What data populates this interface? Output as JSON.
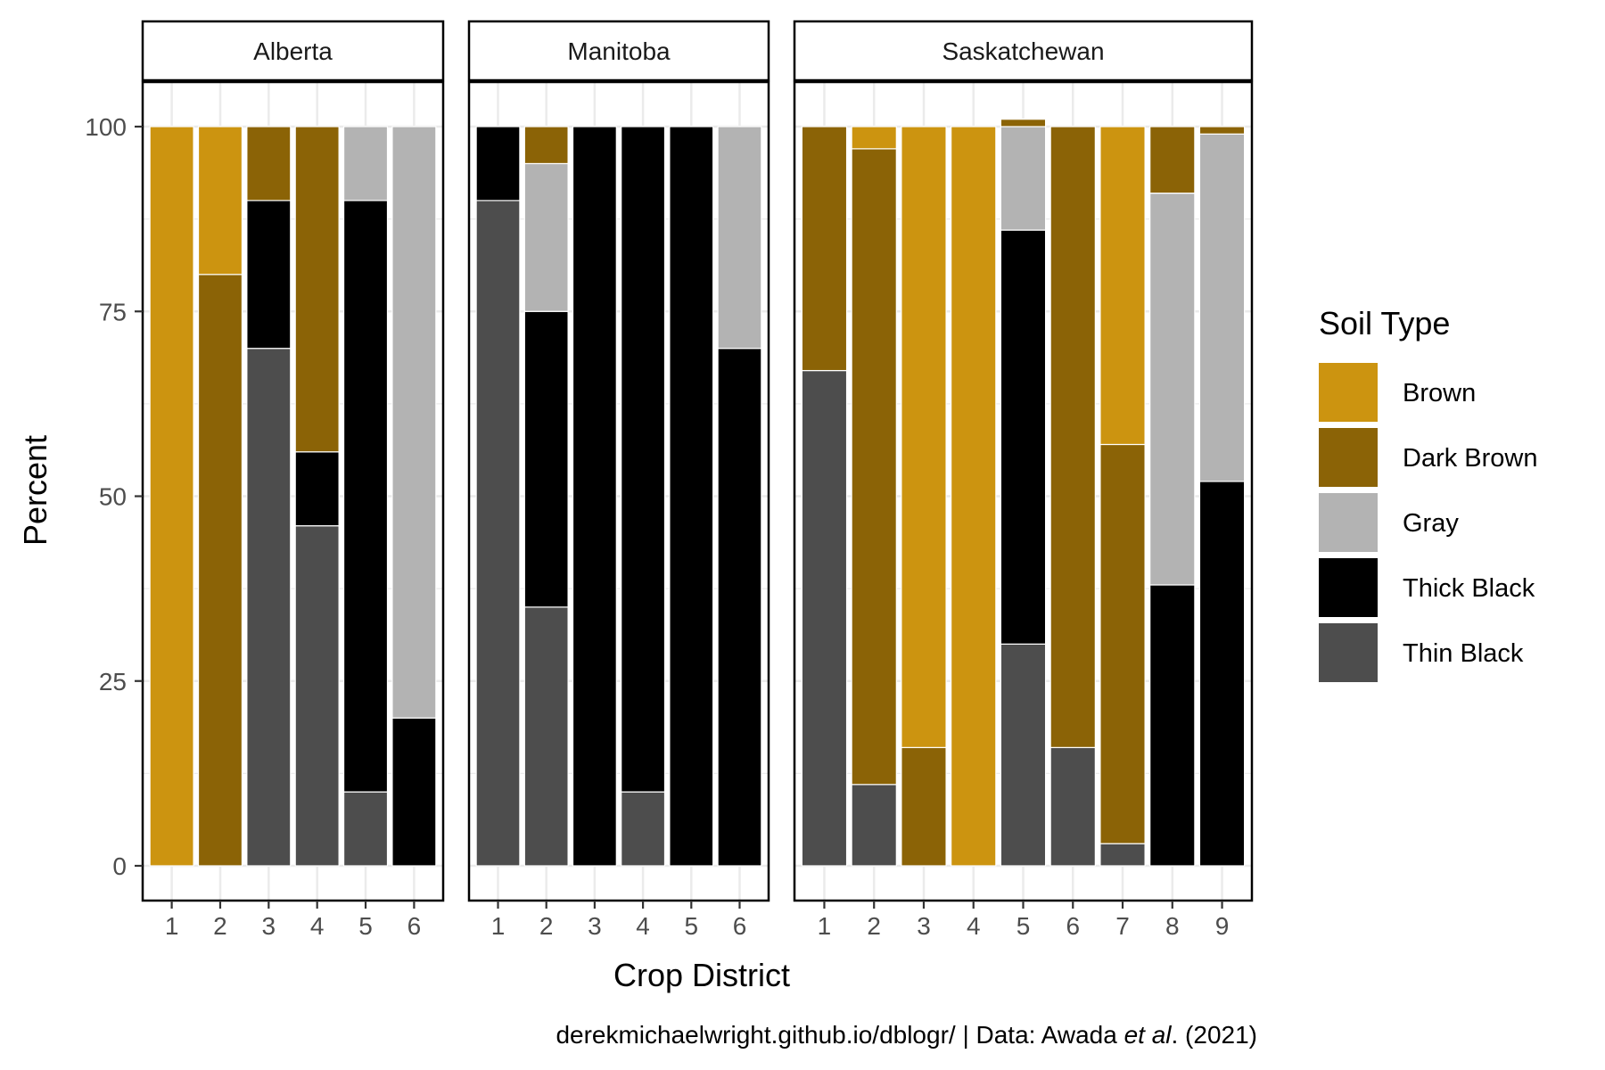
{
  "chart_data": {
    "type": "bar",
    "stacked": true,
    "faceted": true,
    "xlabel": "Crop District",
    "ylabel": "Percent",
    "ylim": [
      0,
      100
    ],
    "yticks": [
      0,
      25,
      50,
      75,
      100
    ],
    "grid": true,
    "legend": {
      "title": "Soil Type",
      "placement": "right",
      "entries": [
        {
          "name": "Brown",
          "color": "#CC9410"
        },
        {
          "name": "Dark Brown",
          "color": "#8B6306"
        },
        {
          "name": "Gray",
          "color": "#B3B3B3"
        },
        {
          "name": "Thick Black",
          "color": "#000000"
        },
        {
          "name": "Thin Black",
          "color": "#4D4D4D"
        }
      ]
    },
    "stack_order_bottom_to_top": [
      "Thin Black",
      "Thick Black",
      "Gray",
      "Dark Brown",
      "Brown"
    ],
    "facets": [
      {
        "name": "Alberta",
        "categories": [
          "1",
          "2",
          "3",
          "4",
          "5",
          "6"
        ],
        "series": [
          {
            "name": "Brown",
            "values": [
              100,
              20,
              0,
              0,
              0,
              0
            ]
          },
          {
            "name": "Dark Brown",
            "values": [
              0,
              80,
              10,
              44,
              0,
              0
            ]
          },
          {
            "name": "Gray",
            "values": [
              0,
              0,
              0,
              0,
              10,
              80
            ]
          },
          {
            "name": "Thick Black",
            "values": [
              0,
              0,
              20,
              10,
              80,
              20
            ]
          },
          {
            "name": "Thin Black",
            "values": [
              0,
              0,
              70,
              46,
              10,
              0
            ]
          }
        ]
      },
      {
        "name": "Manitoba",
        "categories": [
          "1",
          "2",
          "3",
          "4",
          "5",
          "6"
        ],
        "series": [
          {
            "name": "Brown",
            "values": [
              0,
              0,
              0,
              0,
              0,
              0
            ]
          },
          {
            "name": "Dark Brown",
            "values": [
              0,
              5,
              0,
              0,
              0,
              0
            ]
          },
          {
            "name": "Gray",
            "values": [
              0,
              20,
              0,
              0,
              0,
              30
            ]
          },
          {
            "name": "Thick Black",
            "values": [
              10,
              40,
              100,
              90,
              100,
              70
            ]
          },
          {
            "name": "Thin Black",
            "values": [
              90,
              35,
              0,
              10,
              0,
              0
            ]
          }
        ]
      },
      {
        "name": "Saskatchewan",
        "categories": [
          "1",
          "2",
          "3",
          "4",
          "5",
          "6",
          "7",
          "8",
          "9"
        ],
        "series": [
          {
            "name": "Brown",
            "values": [
              0,
              3,
              84,
              100,
              0,
              0,
              43,
              0,
              0
            ]
          },
          {
            "name": "Dark Brown",
            "values": [
              33,
              86,
              16,
              0,
              1,
              84,
              54,
              9,
              1
            ]
          },
          {
            "name": "Gray",
            "values": [
              0,
              0,
              0,
              0,
              14,
              0,
              0,
              53,
              47
            ]
          },
          {
            "name": "Thick Black",
            "values": [
              0,
              0,
              0,
              0,
              56,
              0,
              0,
              38,
              52
            ]
          },
          {
            "name": "Thin Black",
            "values": [
              67,
              11,
              0,
              0,
              30,
              16,
              3,
              0,
              0
            ]
          }
        ]
      }
    ]
  },
  "caption": {
    "prefix": "derekmichaelwright.github.io/dblogr/ | Data: Awada ",
    "italic": "et al",
    "suffix": ". (2021)"
  }
}
